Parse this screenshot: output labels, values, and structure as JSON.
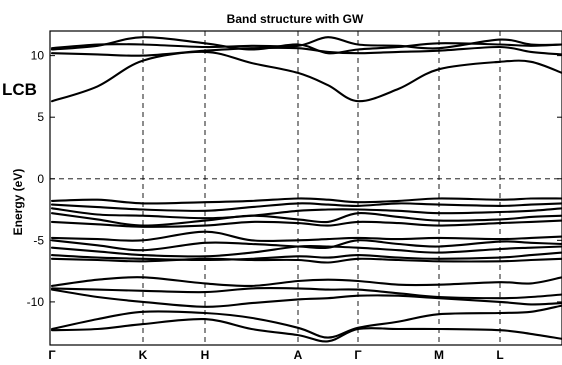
{
  "chart_data": {
    "type": "line",
    "title": "Band structure with GW",
    "ylabel": "Energy (eV)",
    "xlabel": "",
    "ylim": [
      -13.5,
      12
    ],
    "yticks": [
      10,
      5,
      0,
      -5,
      -10
    ],
    "kpoints": [
      "Γ",
      "K",
      "H",
      "A",
      "Γ",
      "M",
      "L"
    ],
    "annotation": "LCB",
    "fermi_level": 0,
    "grid": "vertical dashed lines at high-symmetry points, dashed line at 0 eV",
    "series": [
      {
        "values": [
          6.3,
          7.5,
          9.6,
          10.3,
          9.4,
          8.6,
          7.6,
          6.3,
          7.3,
          8.9,
          9.5,
          9.5,
          8.6
        ]
      },
      {
        "values": [
          10.2,
          10.1,
          10.0,
          10.4,
          10.6,
          10.6,
          10.3,
          10.2,
          10.3,
          10.4,
          10.7,
          10.3,
          10.1
        ]
      },
      {
        "values": [
          10.5,
          10.8,
          11.5,
          11.0,
          10.5,
          10.9,
          10.2,
          10.5,
          10.7,
          11.0,
          10.9,
          10.8,
          10.9
        ]
      },
      {
        "values": [
          10.6,
          10.9,
          10.9,
          10.7,
          10.8,
          10.8,
          11.5,
          10.9,
          10.8,
          10.6,
          11.3,
          10.9,
          10.9
        ]
      },
      {
        "values": [
          -1.8,
          -1.7,
          -2.0,
          -1.9,
          -1.8,
          -1.6,
          -1.7,
          -1.9,
          -1.8,
          -1.6,
          -1.7,
          -1.6,
          -1.6
        ]
      },
      {
        "values": [
          -2.1,
          -2.3,
          -2.5,
          -2.6,
          -2.3,
          -2.0,
          -2.1,
          -2.2,
          -2.0,
          -2.1,
          -2.2,
          -2.1,
          -2.0
        ]
      },
      {
        "values": [
          -2.4,
          -2.9,
          -3.0,
          -3.2,
          -3.0,
          -2.6,
          -2.5,
          -2.5,
          -2.6,
          -2.8,
          -2.7,
          -2.6,
          -2.4
        ]
      },
      {
        "values": [
          -2.8,
          -3.3,
          -3.8,
          -3.4,
          -3.0,
          -3.3,
          -3.5,
          -2.8,
          -3.1,
          -3.4,
          -3.3,
          -3.1,
          -3.0
        ]
      },
      {
        "values": [
          -3.5,
          -3.7,
          -3.9,
          -3.8,
          -3.5,
          -3.6,
          -3.8,
          -3.5,
          -3.6,
          -3.8,
          -3.6,
          -3.5,
          -3.4
        ]
      },
      {
        "values": [
          -4.8,
          -4.9,
          -5.0,
          -4.3,
          -5.0,
          -5.0,
          -4.9,
          -4.8,
          -4.9,
          -4.8,
          -4.9,
          -4.8,
          -4.7
        ]
      },
      {
        "values": [
          -5.0,
          -5.4,
          -5.8,
          -5.2,
          -5.3,
          -5.5,
          -5.6,
          -5.0,
          -5.3,
          -5.5,
          -5.1,
          -5.2,
          -5.3
        ]
      },
      {
        "values": [
          -5.6,
          -5.9,
          -6.2,
          -6.3,
          -6.0,
          -5.5,
          -5.5,
          -5.6,
          -5.8,
          -6.0,
          -5.7,
          -5.6,
          -5.5
        ]
      },
      {
        "values": [
          -6.2,
          -6.4,
          -6.5,
          -6.6,
          -6.5,
          -6.3,
          -6.4,
          -6.2,
          -6.4,
          -6.5,
          -6.4,
          -6.2,
          -6.0
        ]
      },
      {
        "values": [
          -6.5,
          -6.6,
          -6.7,
          -6.5,
          -6.6,
          -6.6,
          -6.8,
          -6.5,
          -6.6,
          -6.7,
          -6.7,
          -6.6,
          -6.5
        ]
      },
      {
        "values": [
          -8.7,
          -8.2,
          -8.0,
          -8.5,
          -8.7,
          -8.3,
          -8.2,
          -8.3,
          -8.6,
          -8.6,
          -8.4,
          -8.5,
          -8.0
        ]
      },
      {
        "values": [
          -8.9,
          -9.0,
          -9.1,
          -9.2,
          -8.9,
          -8.9,
          -9.0,
          -9.0,
          -9.3,
          -9.6,
          -9.7,
          -9.6,
          -9.4
        ]
      },
      {
        "values": [
          -9.0,
          -9.6,
          -10.0,
          -10.4,
          -10.1,
          -9.8,
          -9.7,
          -9.5,
          -9.5,
          -9.7,
          -10.0,
          -10.2,
          -10.1
        ]
      },
      {
        "values": [
          -12.2,
          -11.4,
          -10.8,
          -10.9,
          -11.3,
          -12.1,
          -12.9,
          -12.1,
          -11.6,
          -11.0,
          -10.9,
          -10.8,
          -10.3
        ]
      },
      {
        "values": [
          -12.3,
          -12.2,
          -11.8,
          -11.4,
          -12.2,
          -12.7,
          -13.2,
          -12.2,
          -12.2,
          -12.2,
          -12.3,
          -12.6,
          -13.0
        ]
      }
    ]
  }
}
